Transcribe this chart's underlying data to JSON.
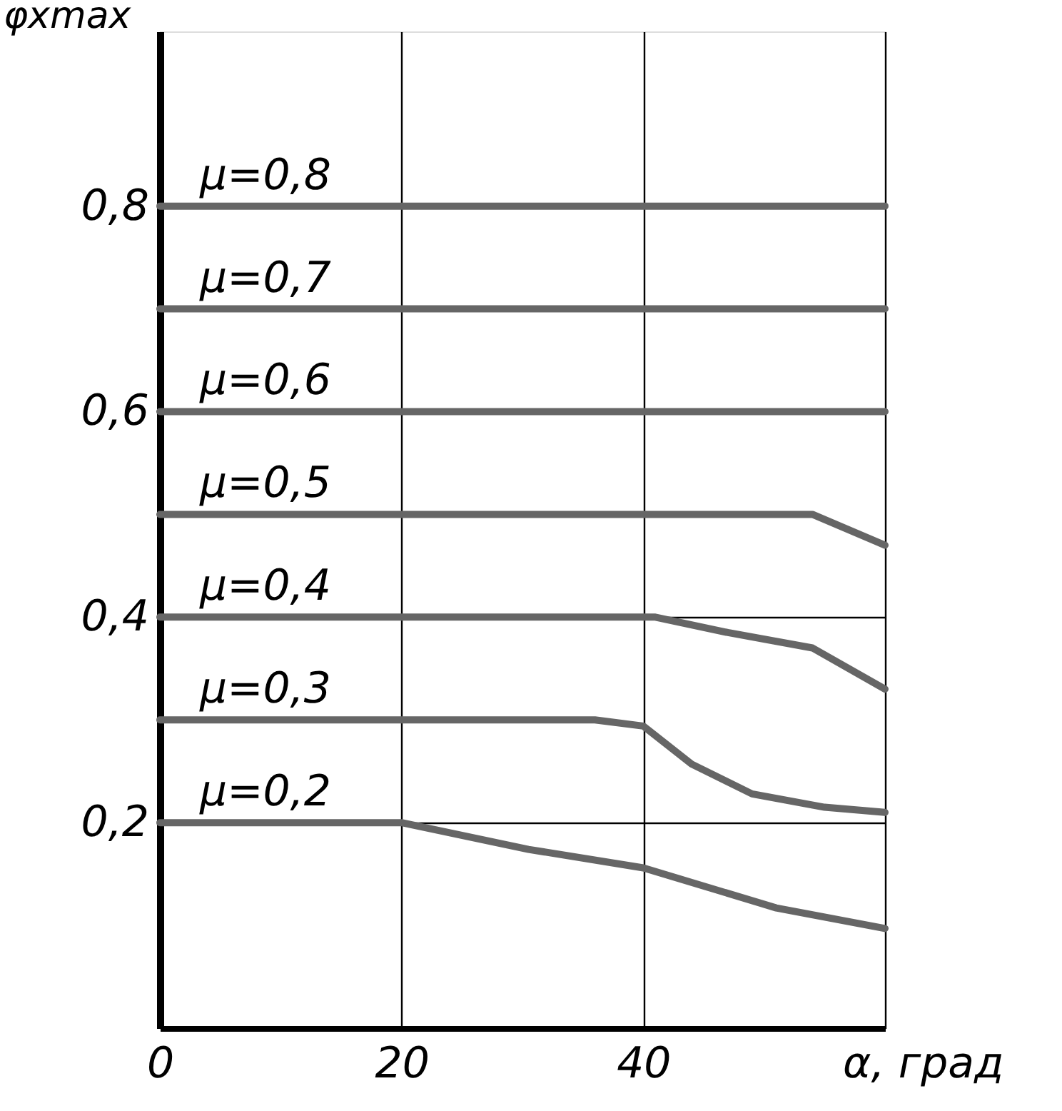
{
  "chart_data": {
    "type": "line",
    "xlabel": "α, град",
    "ylabel": "φxmax",
    "xlim": [
      0,
      60
    ],
    "ylim": [
      0,
      0.97
    ],
    "xticks": [
      0,
      20,
      40,
      {
        "value": 60,
        "label": null
      }
    ],
    "yticks": [
      {
        "value": 0.2,
        "label": "0,2"
      },
      {
        "value": 0.4,
        "label": "0,4"
      },
      {
        "value": 0.6,
        "label": "0,6"
      },
      {
        "value": 0.8,
        "label": "0,8"
      }
    ],
    "grid": true,
    "legend": false,
    "marker": "none",
    "line_style": "solid",
    "series": [
      {
        "name": "μ=0,8",
        "color": "#666666",
        "x": [
          0,
          60
        ],
        "values": [
          0.8,
          0.8
        ]
      },
      {
        "name": "μ=0,7",
        "color": "#666666",
        "x": [
          0,
          60
        ],
        "values": [
          0.7,
          0.7
        ]
      },
      {
        "name": "μ=0,6",
        "color": "#666666",
        "x": [
          0,
          60
        ],
        "values": [
          0.6,
          0.6
        ]
      },
      {
        "name": "μ=0,5",
        "color": "#666666",
        "x": [
          0,
          54,
          60
        ],
        "values": [
          0.5,
          0.5,
          0.47
        ]
      },
      {
        "name": "μ=0,4",
        "color": "#666666",
        "x": [
          0,
          41,
          47,
          54,
          60
        ],
        "values": [
          0.4,
          0.4,
          0.385,
          0.37,
          0.33
        ]
      },
      {
        "name": "μ=0,3",
        "color": "#666666",
        "x": [
          0,
          36,
          40,
          44,
          49,
          55,
          60
        ],
        "values": [
          0.3,
          0.3,
          0.294,
          0.257,
          0.228,
          0.215,
          0.21
        ]
      },
      {
        "name": "μ=0,2",
        "color": "#666666",
        "x": [
          0,
          20,
          30.5,
          40,
          51,
          60
        ],
        "values": [
          0.2,
          0.2,
          0.174,
          0.156,
          0.117,
          0.097
        ]
      }
    ]
  }
}
